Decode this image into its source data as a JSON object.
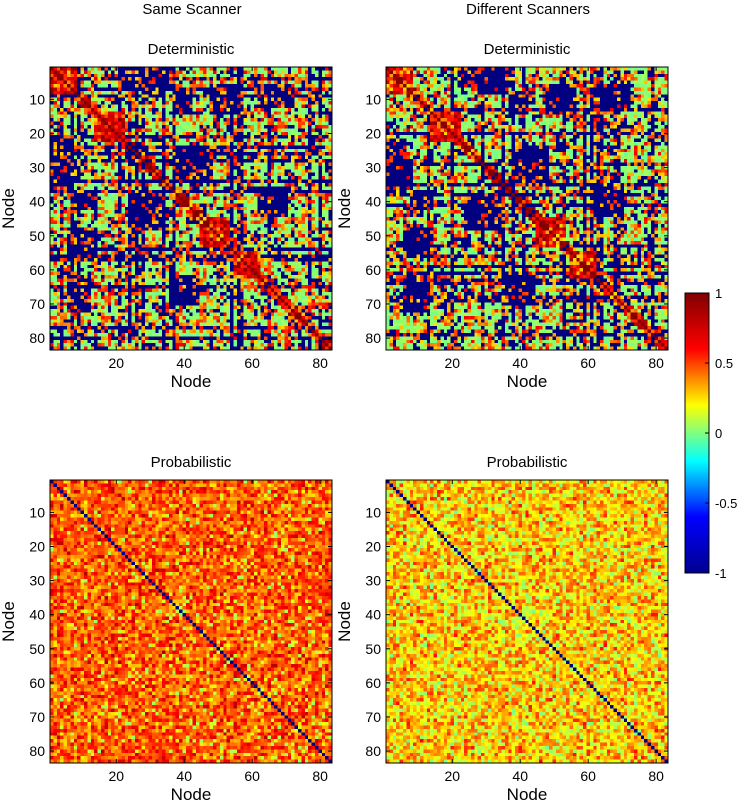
{
  "figure": {
    "column_titles": [
      "Same Scanner",
      "Different Scanners"
    ]
  },
  "chart_data": [
    {
      "type": "heatmap",
      "id": "same-deterministic",
      "column": "Same Scanner",
      "title": "Deterministic",
      "xlabel": "Node",
      "ylabel": "Node",
      "n_nodes": 83,
      "xticks": [
        20,
        40,
        60,
        80
      ],
      "yticks": [
        10,
        20,
        30,
        40,
        50,
        60,
        70,
        80
      ],
      "clim": [
        -1,
        1
      ],
      "pattern": "deterministic",
      "seed": 11,
      "dark_blocks": [
        [
          2,
          8,
          28,
          34
        ],
        [
          22,
          37,
          1,
          6
        ],
        [
          8,
          14,
          37,
          42
        ],
        [
          24,
          34,
          38,
          48
        ],
        [
          48,
          56,
          6,
          14
        ],
        [
          62,
          72,
          6,
          12
        ],
        [
          36,
          44,
          62,
          70
        ]
      ],
      "hot_blocks": [
        [
          1,
          8,
          1,
          8
        ],
        [
          14,
          22,
          14,
          22
        ],
        [
          45,
          53,
          45,
          53
        ],
        [
          55,
          62,
          55,
          62
        ]
      ]
    },
    {
      "type": "heatmap",
      "id": "diff-deterministic",
      "column": "Different Scanners",
      "title": "Deterministic",
      "xlabel": "Node",
      "ylabel": "Node",
      "n_nodes": 83,
      "xticks": [
        20,
        40,
        60,
        80
      ],
      "yticks": [
        10,
        20,
        30,
        40,
        50,
        60,
        70,
        80
      ],
      "clim": [
        -1,
        1
      ],
      "pattern": "deterministic",
      "seed": 23,
      "dark_blocks": [
        [
          2,
          8,
          28,
          34
        ],
        [
          22,
          37,
          1,
          6
        ],
        [
          8,
          14,
          37,
          42
        ],
        [
          24,
          34,
          38,
          48
        ],
        [
          48,
          56,
          6,
          14
        ],
        [
          62,
          72,
          6,
          12
        ],
        [
          36,
          44,
          62,
          70
        ]
      ],
      "hot_blocks": [
        [
          1,
          8,
          1,
          8
        ],
        [
          14,
          22,
          14,
          22
        ],
        [
          45,
          53,
          45,
          53
        ],
        [
          55,
          62,
          55,
          62
        ]
      ]
    },
    {
      "type": "heatmap",
      "id": "same-probabilistic",
      "column": "Same Scanner",
      "title": "Probabilistic",
      "xlabel": "Node",
      "ylabel": "Node",
      "n_nodes": 83,
      "xticks": [
        20,
        40,
        60,
        80
      ],
      "yticks": [
        10,
        20,
        30,
        40,
        50,
        60,
        70,
        80
      ],
      "clim": [
        -1,
        1
      ],
      "pattern": "probabilistic",
      "seed": 37,
      "mean": 0.58,
      "spread": 0.22
    },
    {
      "type": "heatmap",
      "id": "diff-probabilistic",
      "column": "Different Scanners",
      "title": "Probabilistic",
      "xlabel": "Node",
      "ylabel": "Node",
      "n_nodes": 83,
      "xticks": [
        20,
        40,
        60,
        80
      ],
      "yticks": [
        10,
        20,
        30,
        40,
        50,
        60,
        70,
        80
      ],
      "clim": [
        -1,
        1
      ],
      "pattern": "probabilistic",
      "seed": 51,
      "mean": 0.35,
      "spread": 0.28
    }
  ],
  "colorbar": {
    "colormap": "jet",
    "range": [
      -1,
      1
    ],
    "ticks": [
      1,
      0.5,
      0,
      -0.5,
      -1
    ],
    "tick_labels": [
      "1",
      "0.5",
      "0",
      "-0.5",
      "-1"
    ],
    "colors": [
      "#00008f",
      "#0000ff",
      "#00ffff",
      "#ffff00",
      "#ff0000",
      "#800000"
    ]
  }
}
